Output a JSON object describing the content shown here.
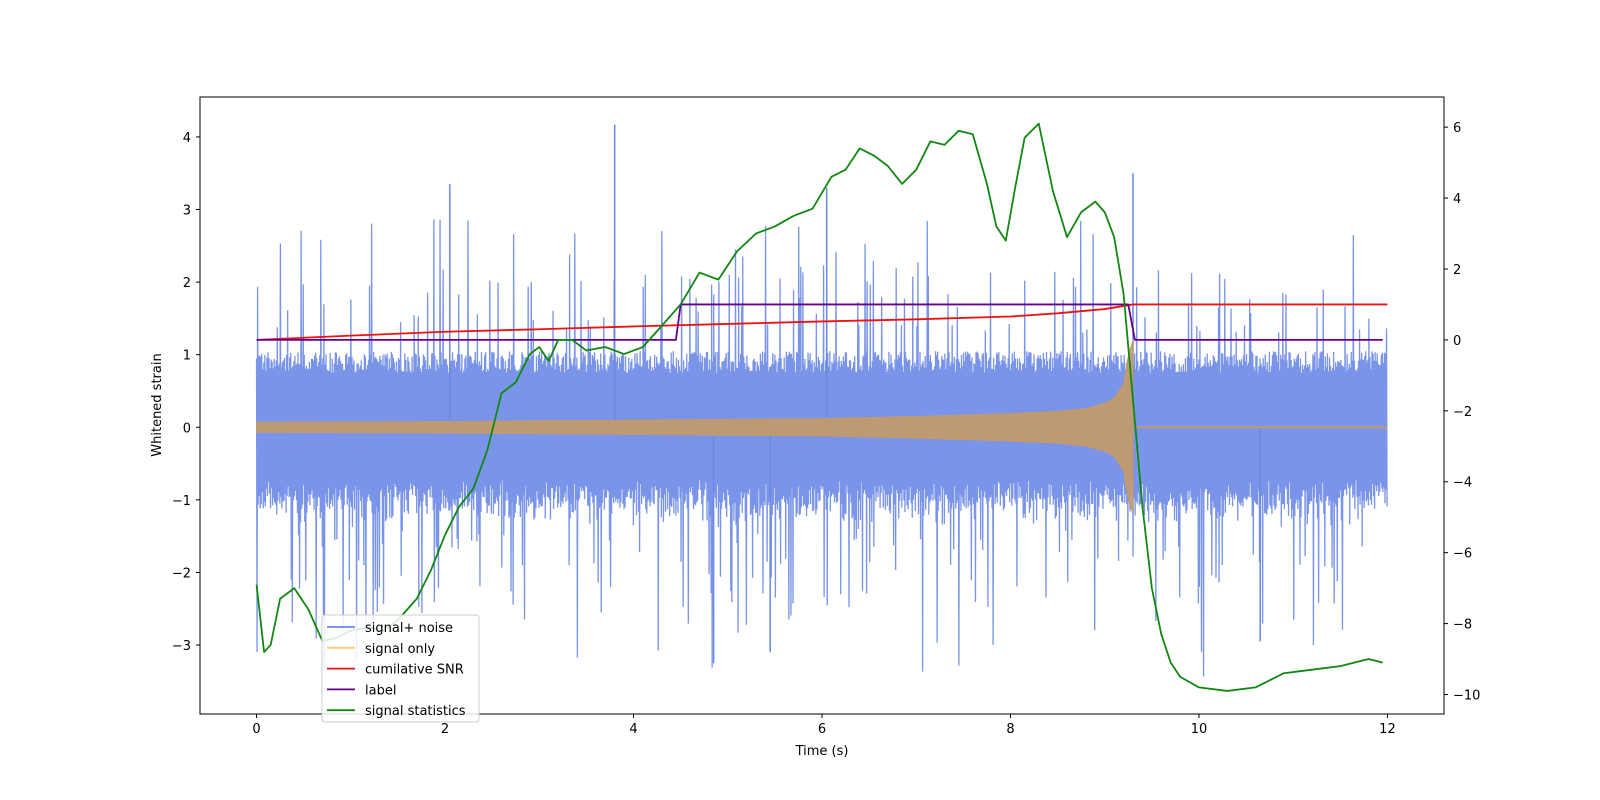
{
  "chart_data": {
    "type": "line",
    "xlabel": "Time (s)",
    "ylabel_left": "Whitened strain",
    "ylabel_right": "",
    "xlim": [
      -0.6,
      12.6
    ],
    "ylim_left": [
      -3.95,
      4.55
    ],
    "ylim_right": [
      -10.55,
      6.85
    ],
    "xticks": [
      0,
      2,
      4,
      6,
      8,
      10,
      12
    ],
    "yticks_left": [
      -3,
      -2,
      -1,
      0,
      1,
      2,
      3,
      4
    ],
    "yticks_right": [
      -10,
      -8,
      -6,
      -4,
      -2,
      0,
      2,
      4,
      6
    ],
    "legend_position": "lower-left",
    "colors": {
      "signal_noise": "#6a88e6",
      "signal_only": "#ffc870",
      "cumulative_snr": "#ee1111",
      "label": "#660088",
      "signal_statistics": "#118811"
    },
    "series": [
      {
        "name": "signal+ noise",
        "axis": "left",
        "kind": "noise-band",
        "t_start": 0,
        "t_end": 12,
        "core_amplitude": 1.0,
        "spike_max": 4.17
      },
      {
        "name": "signal only",
        "axis": "left",
        "kind": "chirp-envelope",
        "t": [
          0,
          2,
          4,
          6,
          7,
          8,
          8.5,
          8.8,
          9.0,
          9.1,
          9.2,
          9.25,
          9.3
        ],
        "amp": [
          0.07,
          0.08,
          0.1,
          0.12,
          0.15,
          0.19,
          0.22,
          0.26,
          0.33,
          0.4,
          0.6,
          1.0,
          1.2
        ],
        "t_post": [
          9.3,
          12
        ],
        "amp_post": 0.0
      },
      {
        "name": "cumilative SNR",
        "axis": "right",
        "t": [
          0,
          1,
          2,
          3,
          4,
          5,
          6,
          7,
          8,
          8.5,
          9.0,
          9.3,
          12
        ],
        "values": [
          0.0,
          0.12,
          0.23,
          0.3,
          0.38,
          0.45,
          0.52,
          0.58,
          0.66,
          0.75,
          0.87,
          1.0,
          1.0
        ]
      },
      {
        "name": "label",
        "axis": "right",
        "t": [
          0,
          4.45,
          4.5,
          9.25,
          9.32,
          11.95
        ],
        "values": [
          0,
          0,
          1,
          1,
          0,
          0
        ]
      },
      {
        "name": "signal statistics",
        "axis": "right",
        "t": [
          0,
          0.08,
          0.15,
          0.25,
          0.4,
          0.55,
          0.7,
          0.85,
          1.0,
          1.2,
          1.35,
          1.5,
          1.7,
          1.85,
          2.0,
          2.15,
          2.3,
          2.45,
          2.6,
          2.75,
          2.9,
          3.0,
          3.1,
          3.2,
          3.35,
          3.5,
          3.7,
          3.9,
          4.1,
          4.3,
          4.5,
          4.7,
          4.9,
          5.1,
          5.3,
          5.5,
          5.7,
          5.9,
          6.1,
          6.25,
          6.4,
          6.55,
          6.7,
          6.85,
          7.0,
          7.15,
          7.3,
          7.45,
          7.6,
          7.75,
          7.85,
          7.95,
          8.05,
          8.15,
          8.3,
          8.45,
          8.6,
          8.75,
          8.9,
          9.0,
          9.1,
          9.2,
          9.3,
          9.4,
          9.5,
          9.6,
          9.7,
          9.8,
          10.0,
          10.3,
          10.6,
          10.9,
          11.2,
          11.5,
          11.8,
          11.95
        ],
        "values": [
          -6.9,
          -8.8,
          -8.6,
          -7.3,
          -7.0,
          -7.6,
          -8.5,
          -8.4,
          -8.2,
          -8.1,
          -8.2,
          -7.9,
          -7.3,
          -6.5,
          -5.5,
          -4.7,
          -4.2,
          -3.1,
          -1.5,
          -1.2,
          -0.4,
          -0.2,
          -0.6,
          0.0,
          0.0,
          -0.3,
          -0.2,
          -0.4,
          -0.2,
          0.4,
          1.0,
          1.9,
          1.7,
          2.5,
          3.0,
          3.2,
          3.5,
          3.7,
          4.6,
          4.8,
          5.4,
          5.2,
          4.9,
          4.4,
          4.8,
          5.6,
          5.5,
          5.9,
          5.8,
          4.4,
          3.2,
          2.8,
          4.3,
          5.7,
          6.1,
          4.2,
          2.9,
          3.6,
          3.9,
          3.6,
          2.9,
          1.3,
          -1.7,
          -4.7,
          -7.0,
          -8.3,
          -9.1,
          -9.5,
          -9.8,
          -9.9,
          -9.8,
          -9.4,
          -9.3,
          -9.2,
          -9.0,
          -9.1
        ]
      }
    ]
  }
}
